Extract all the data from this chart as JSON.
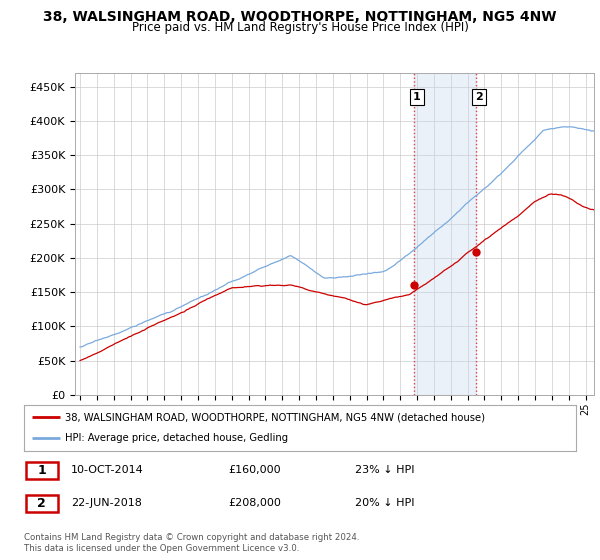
{
  "title": "38, WALSINGHAM ROAD, WOODTHORPE, NOTTINGHAM, NG5 4NW",
  "subtitle": "Price paid vs. HM Land Registry's House Price Index (HPI)",
  "ylabel_ticks": [
    "£0",
    "£50K",
    "£100K",
    "£150K",
    "£200K",
    "£250K",
    "£300K",
    "£350K",
    "£400K",
    "£450K"
  ],
  "ytick_values": [
    0,
    50000,
    100000,
    150000,
    200000,
    250000,
    300000,
    350000,
    400000,
    450000
  ],
  "ylim": [
    0,
    470000
  ],
  "xlim_start": 1994.7,
  "xlim_end": 2025.5,
  "hpi_color": "#7aaadd",
  "price_color": "#cc0000",
  "sale1_year": 2014.79,
  "sale1_price": 160000,
  "sale2_year": 2018.47,
  "sale2_price": 208000,
  "vline_color": "#dd4444",
  "shade_color": "#c8d8ee",
  "legend_line1": "38, WALSINGHAM ROAD, WOODTHORPE, NOTTINGHAM, NG5 4NW (detached house)",
  "legend_line2": "HPI: Average price, detached house, Gedling",
  "annotation1_label": "1",
  "annotation1_date": "10-OCT-2014",
  "annotation1_price": "£160,000",
  "annotation1_hpi": "23% ↓ HPI",
  "annotation2_label": "2",
  "annotation2_date": "22-JUN-2018",
  "annotation2_price": "£208,000",
  "annotation2_hpi": "20% ↓ HPI",
  "footer": "Contains HM Land Registry data © Crown copyright and database right 2024.\nThis data is licensed under the Open Government Licence v3.0.",
  "background_color": "#ffffff",
  "grid_color": "#cccccc"
}
